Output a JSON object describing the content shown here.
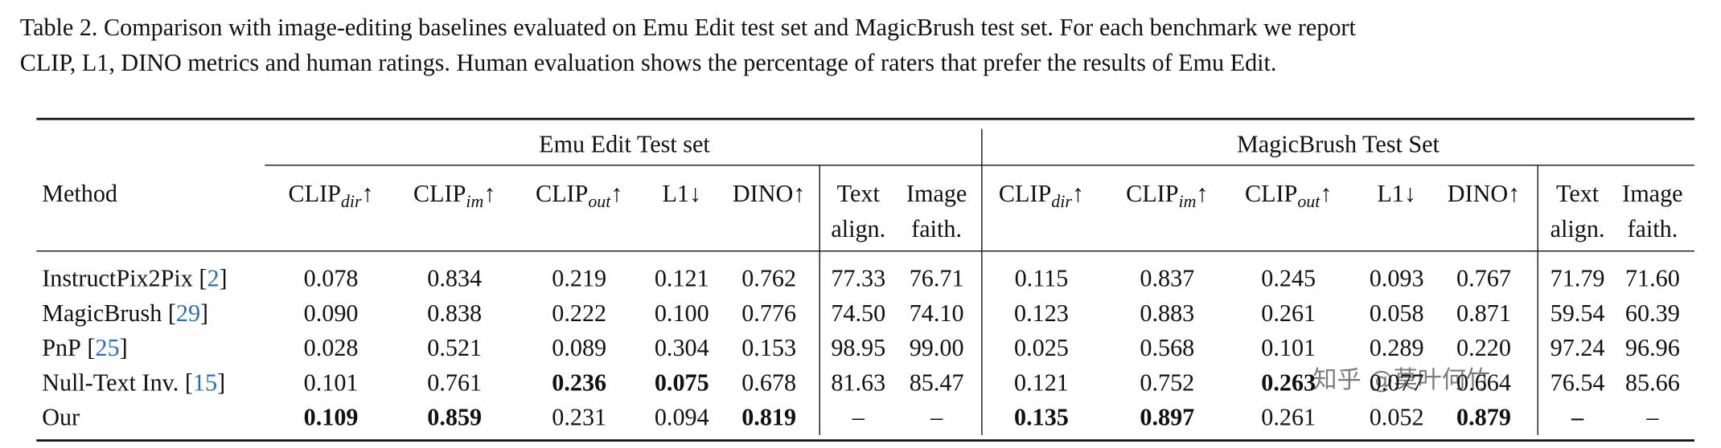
{
  "caption": {
    "label": "Table 2.",
    "lines": [
      "Comparison with image-editing baselines evaluated on Emu Edit test set and MagicBrush test set. For each benchmark we report",
      "CLIP, L1, DINO metrics and human ratings. Human evaluation shows the percentage of raters that prefer the results of Emu Edit."
    ]
  },
  "table": {
    "groups": [
      "Emu Edit Test set",
      "MagicBrush Test Set"
    ],
    "method_header": "Method",
    "ref_brackets": [
      "[",
      "]"
    ],
    "columns": [
      {
        "text": "CLIP",
        "sub": "dir",
        "arrow": "↑"
      },
      {
        "text": "CLIP",
        "sub": "im",
        "arrow": "↑"
      },
      {
        "text": "CLIP",
        "sub": "out",
        "arrow": "↑"
      },
      {
        "text": "L1",
        "arrow": "↓"
      },
      {
        "text": "DINO",
        "arrow": "↑"
      },
      {
        "lines": [
          "Text",
          "align."
        ]
      },
      {
        "lines": [
          "Image",
          "faith."
        ]
      },
      {
        "text": "CLIP",
        "sub": "dir",
        "arrow": "↑"
      },
      {
        "text": "CLIP",
        "sub": "im",
        "arrow": "↑"
      },
      {
        "text": "CLIP",
        "sub": "out",
        "arrow": "↑"
      },
      {
        "text": "L1",
        "arrow": "↓"
      },
      {
        "text": "DINO",
        "arrow": "↑"
      },
      {
        "lines": [
          "Text",
          "align."
        ]
      },
      {
        "lines": [
          "Image",
          "faith."
        ]
      }
    ],
    "rows": [
      {
        "method": "InstructPix2Pix",
        "ref": "2",
        "values": [
          "0.078",
          "0.834",
          "0.219",
          "0.121",
          "0.762",
          "77.33",
          "76.71",
          "0.115",
          "0.837",
          "0.245",
          "0.093",
          "0.767",
          "71.79",
          "71.60"
        ],
        "bold": []
      },
      {
        "method": "MagicBrush",
        "ref": "29",
        "values": [
          "0.090",
          "0.838",
          "0.222",
          "0.100",
          "0.776",
          "74.50",
          "74.10",
          "0.123",
          "0.883",
          "0.261",
          "0.058",
          "0.871",
          "59.54",
          "60.39"
        ],
        "bold": []
      },
      {
        "method": "PnP",
        "ref": "25",
        "values": [
          "0.028",
          "0.521",
          "0.089",
          "0.304",
          "0.153",
          "98.95",
          "99.00",
          "0.025",
          "0.568",
          "0.101",
          "0.289",
          "0.220",
          "97.24",
          "96.96"
        ],
        "bold": []
      },
      {
        "method": "Null-Text Inv.",
        "ref": "15",
        "values": [
          "0.101",
          "0.761",
          "0.236",
          "0.075",
          "0.678",
          "81.63",
          "85.47",
          "0.121",
          "0.752",
          "0.263",
          "0.077",
          "0.664",
          "76.54",
          "85.66"
        ],
        "bold": [
          2,
          3,
          9
        ]
      },
      {
        "method": "Our",
        "values": [
          "0.109",
          "0.859",
          "0.231",
          "0.094",
          "0.819",
          "–",
          "–",
          "0.135",
          "0.897",
          "0.261",
          "0.052",
          "0.879",
          "–",
          "–"
        ],
        "bold": [
          0,
          1,
          4,
          7,
          8,
          11,
          12
        ]
      }
    ]
  },
  "watermark": "知乎 @莫叶何竹"
}
